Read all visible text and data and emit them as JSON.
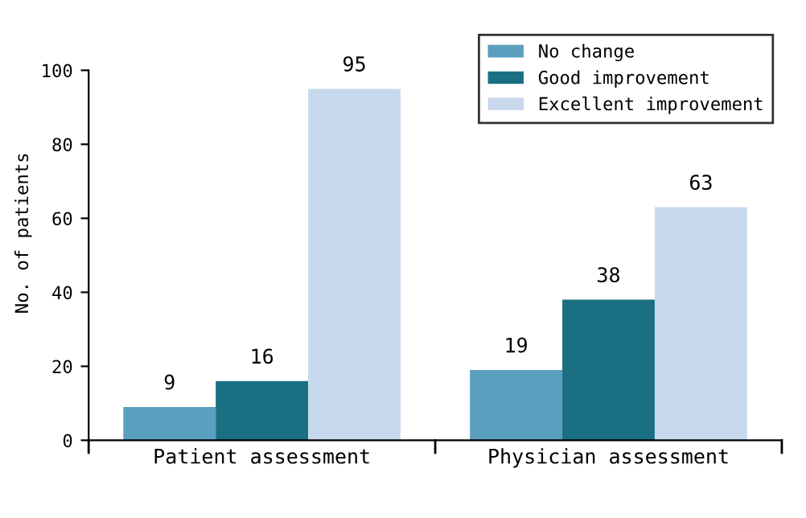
{
  "chart_data": {
    "type": "bar",
    "ylabel": "No. of patients",
    "categories": [
      "Patient assessment",
      "Physician assessment"
    ],
    "series": [
      {
        "name": "No change",
        "color": "#5b9fc0",
        "values": [
          9,
          19
        ]
      },
      {
        "name": "Good improvement",
        "color": "#1b6f82",
        "values": [
          16,
          38
        ]
      },
      {
        "name": "Excellent improvement",
        "color": "#c9d9ed",
        "values": [
          95,
          63
        ]
      }
    ],
    "ylim": [
      0,
      100
    ],
    "yticks": [
      0,
      20,
      40,
      60,
      80,
      100
    ],
    "data_labels": true,
    "legend": "top right",
    "grid": false
  }
}
